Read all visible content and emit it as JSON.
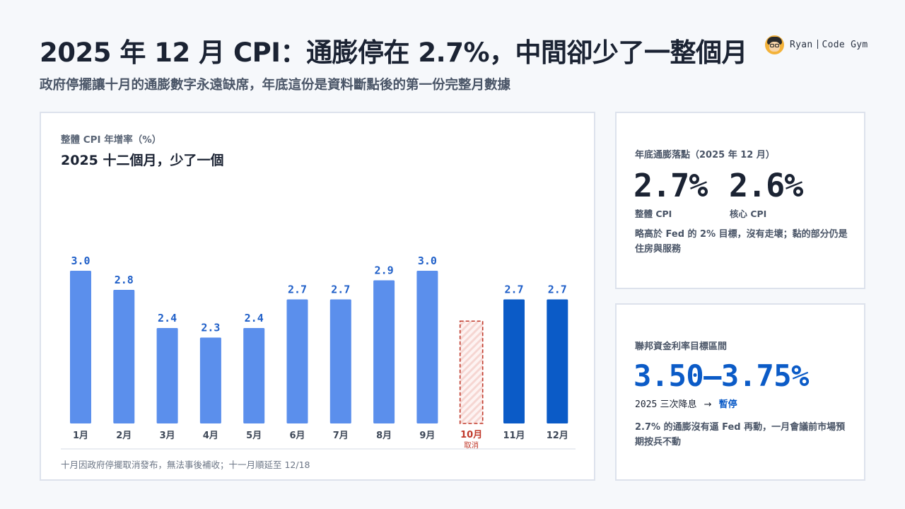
{
  "header": {
    "title": "2025 年 12 月 CPI：通膨停在 2.7%，中間卻少了一整個月",
    "subtitle": "政府停擺讓十月的通膨數字永遠缺席，年底這份是資料斷點後的第一份完整月數據",
    "brand_name": "Ryan",
    "brand_channel": "Code Gym"
  },
  "chart_card": {
    "label": "整體 CPI 年增率（%）",
    "title": "2025 十二個月，少了一個",
    "note": "十月因政府停擺取消發布，無法事後補收；十一月順延至 12/18"
  },
  "chart_data": {
    "type": "bar",
    "title": "2025 十二個月，少了一個",
    "ylabel": "整體 CPI 年增率（%）",
    "categories": [
      "1月",
      "2月",
      "3月",
      "4月",
      "5月",
      "6月",
      "7月",
      "8月",
      "9月",
      "10月",
      "11月",
      "12月"
    ],
    "values": [
      3.0,
      2.8,
      2.4,
      2.3,
      2.4,
      2.7,
      2.7,
      2.9,
      3.0,
      null,
      2.7,
      2.7
    ],
    "value_labels": [
      "3.0",
      "2.8",
      "2.4",
      "2.3",
      "2.4",
      "2.7",
      "2.7",
      "2.9",
      "3.0",
      "",
      "2.7",
      "2.7"
    ],
    "missing": {
      "index": 9,
      "label": "取消"
    },
    "highlight_indices": [
      10,
      11
    ],
    "ylim": [
      1.4,
      3.2
    ],
    "grid": false,
    "colors": {
      "bar": "#5b8fec",
      "highlight": "#0b5bc7",
      "missing": "#c0392b",
      "value_label": "#1f5fc8",
      "axis": "#e3e7ee"
    }
  },
  "year_end": {
    "label": "年底通膨落點（2025 年 12 月）",
    "headline_value": "2.7%",
    "headline_caption": "整體 CPI",
    "core_value": "2.6%",
    "core_caption": "核心 CPI",
    "desc": "略高於 Fed 的 2% 目標，沒有走壞；黏的部分仍是住房與服務"
  },
  "fed_rate": {
    "label": "聯邦資金利率目標區間",
    "value": "3.50–3.75%",
    "year": "2025",
    "cuts": "三次降息",
    "arrow": "→",
    "status": "暫停",
    "desc": "2.7% 的通膨沒有逼 Fed 再動，一月會議前市場預期按兵不動"
  }
}
